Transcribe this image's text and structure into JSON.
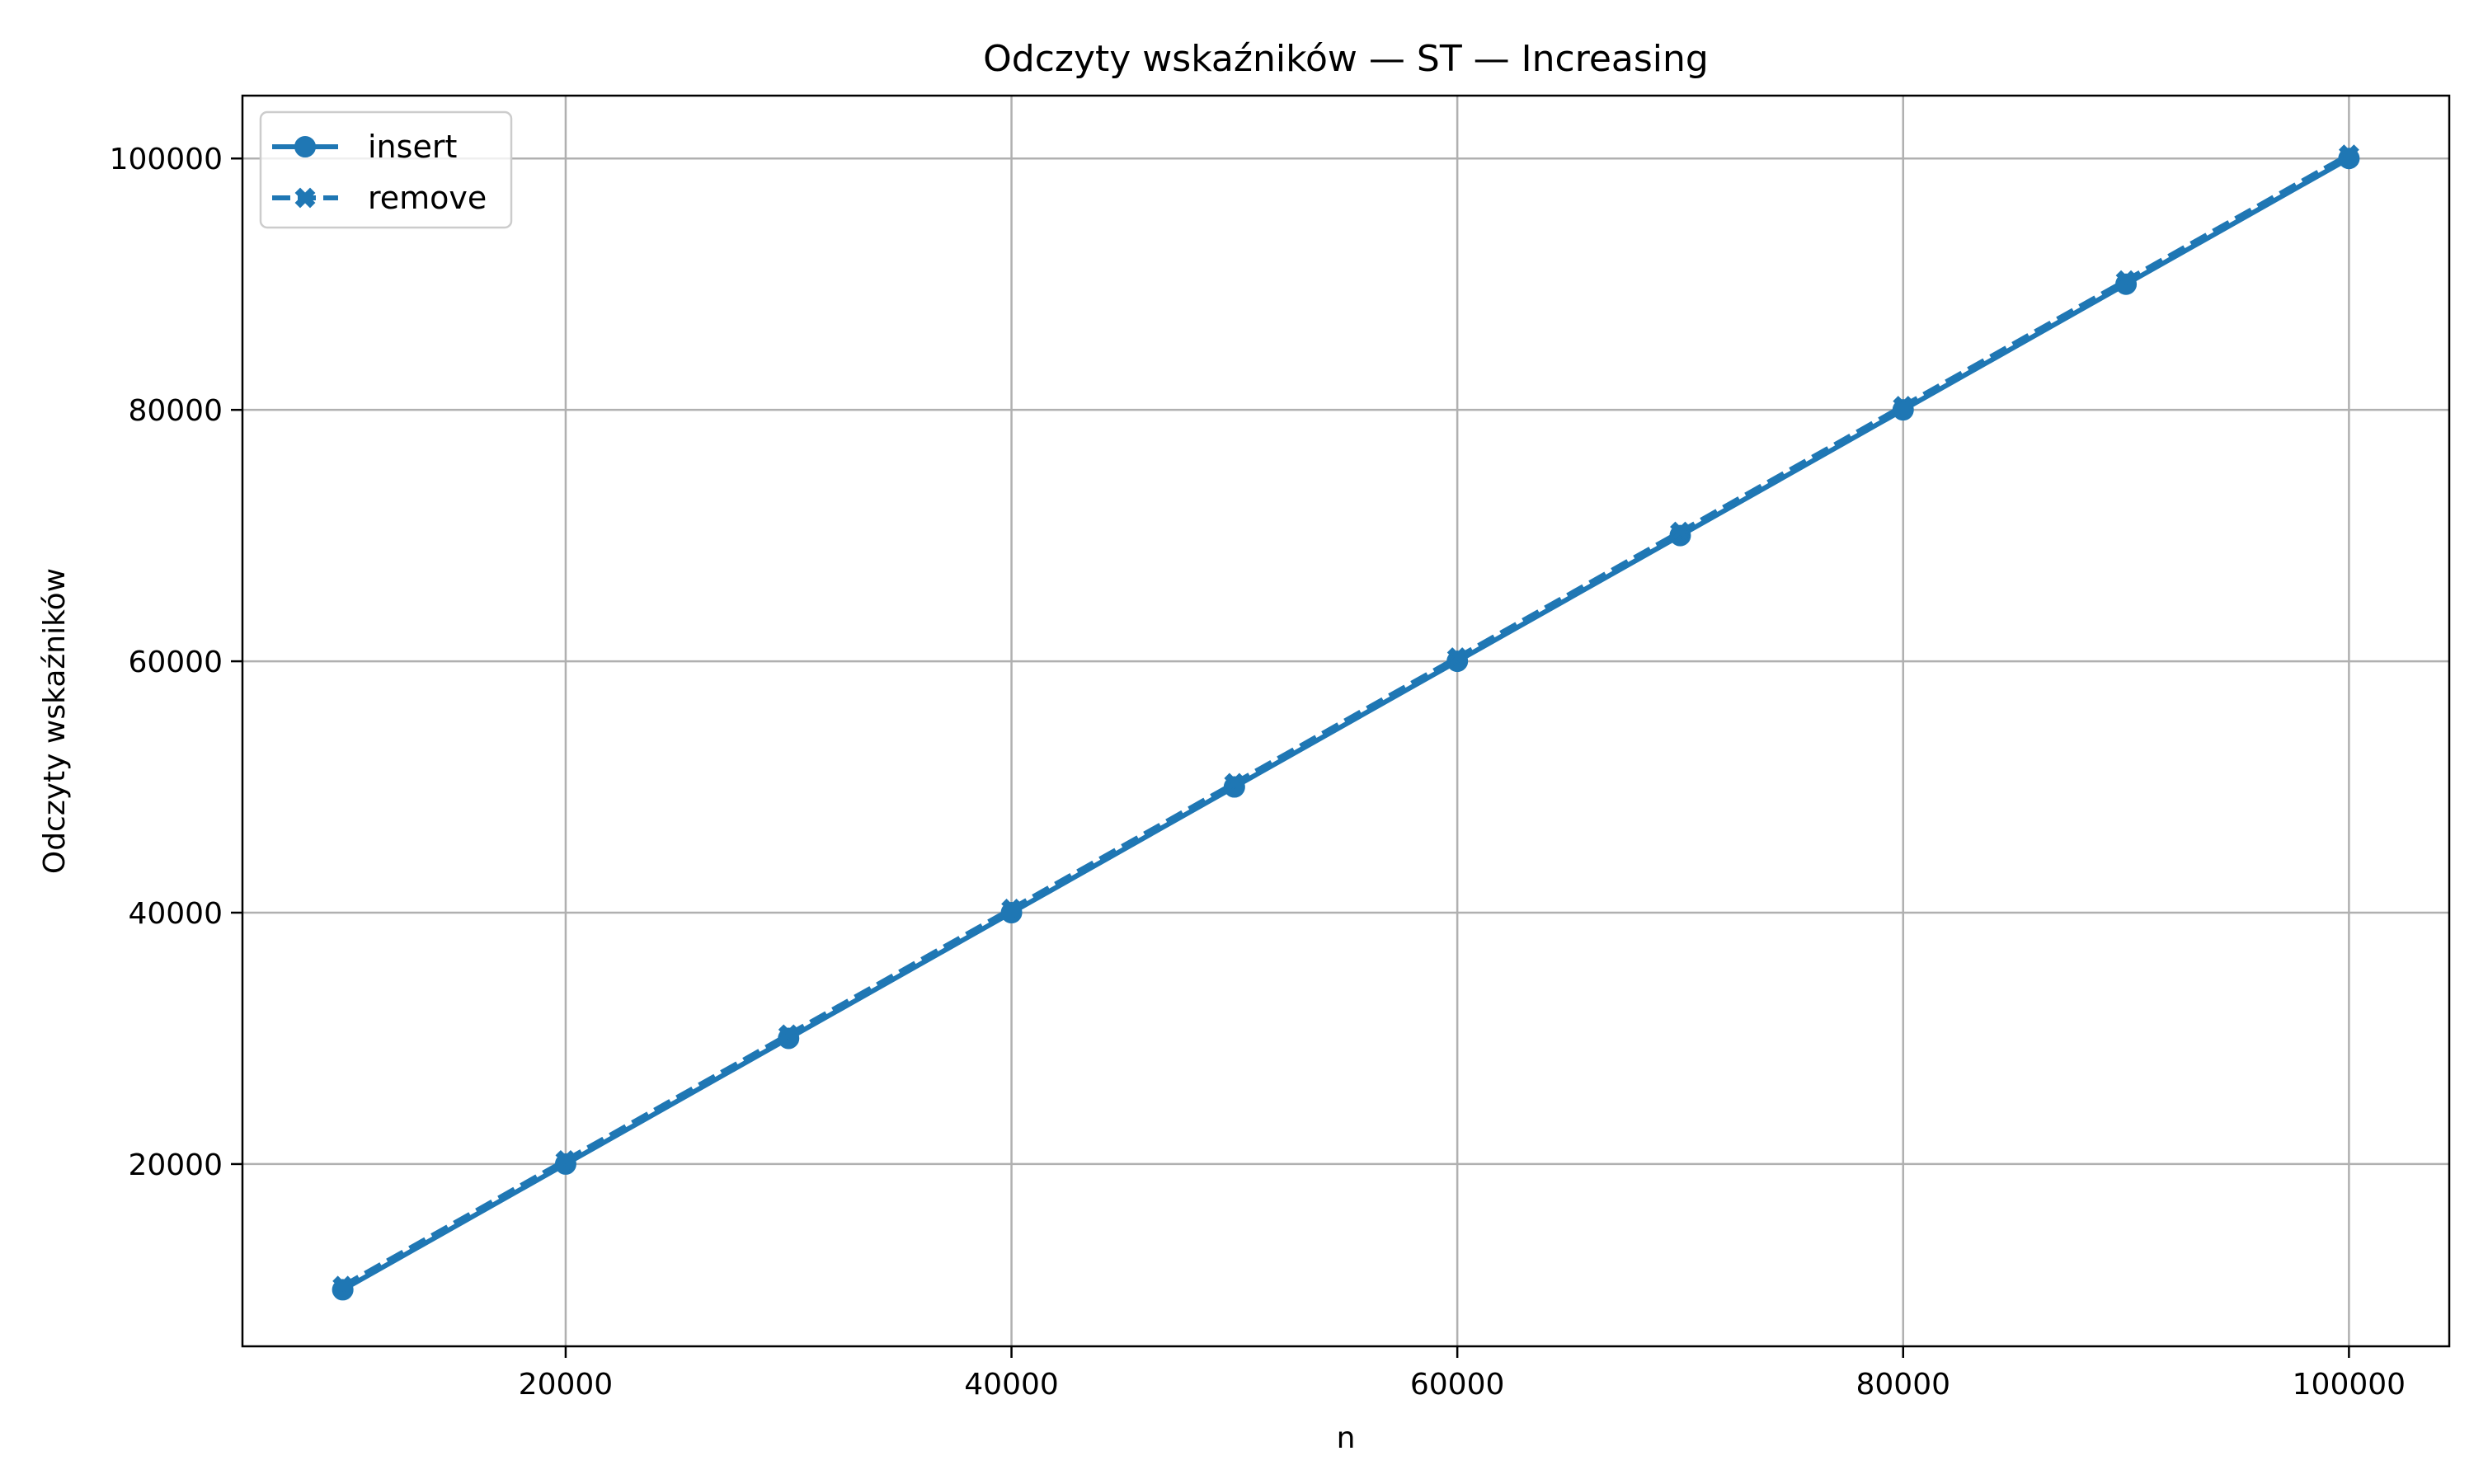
{
  "chart_data": {
    "type": "line",
    "title": "Odczyty wskaźników — ST — Increasing",
    "xlabel": "n",
    "ylabel": "Odczyty wskaźników",
    "xlim": [
      5500,
      104500
    ],
    "ylim": [
      5500,
      105000
    ],
    "xticks": [
      20000,
      40000,
      60000,
      80000,
      100000
    ],
    "yticks": [
      20000,
      40000,
      60000,
      80000,
      100000
    ],
    "grid": true,
    "legend_position": "top-left",
    "x": [
      10000,
      20000,
      30000,
      40000,
      50000,
      60000,
      70000,
      80000,
      90000,
      100000
    ],
    "series": [
      {
        "name": "insert",
        "values": [
          10000,
          20000,
          30000,
          40000,
          50000,
          60000,
          70000,
          80000,
          90000,
          100000
        ],
        "marker": "circle",
        "line_style": "solid",
        "color": "#1f77b4"
      },
      {
        "name": "remove",
        "values": [
          10300,
          20300,
          30300,
          40300,
          50300,
          60300,
          70300,
          80300,
          90300,
          100300
        ],
        "marker": "x-filled",
        "line_style": "dashed",
        "color": "#1f77b4"
      }
    ]
  }
}
